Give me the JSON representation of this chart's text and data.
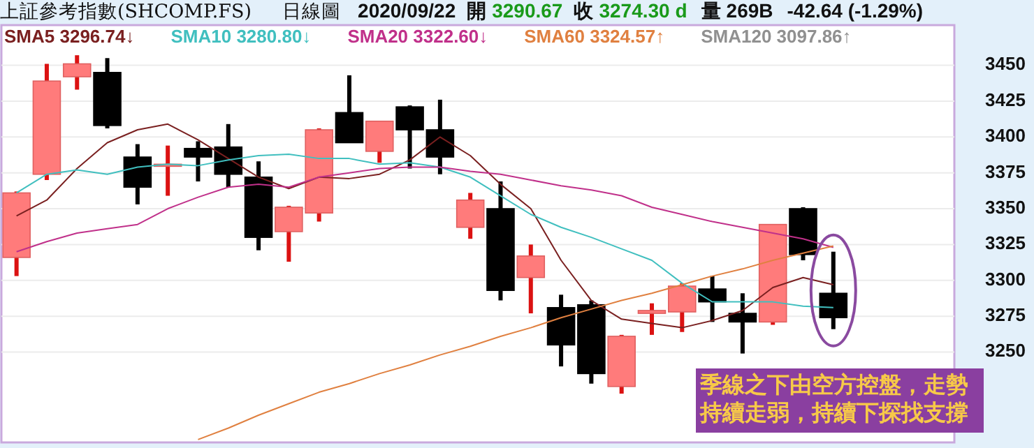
{
  "chart_data": {
    "type": "candlestick",
    "title": "上証參考指數(SHCOMP.FS)",
    "subtitle": "日線圖",
    "annotations": [
      "2020/09/22",
      "開",
      "3290.67",
      "收",
      "3274.30 d",
      "量",
      "269B",
      "-42.64 (-1.29%)",
      "季線之下由空方控盤，走勢持續走弱，持續下探找支撐"
    ],
    "categories": [
      null,
      null,
      null,
      null,
      null,
      null,
      null,
      null,
      null,
      null,
      null,
      null,
      null,
      null,
      null,
      null,
      null,
      null,
      null,
      null,
      null,
      null,
      null,
      null,
      null,
      null,
      null,
      null
    ],
    "ohlc": [
      [
        3316,
        3362,
        3303,
        3361
      ],
      [
        3374,
        3451,
        3370,
        3439
      ],
      [
        3442,
        3457,
        3433,
        3451
      ],
      [
        3445,
        3455,
        3406,
        3408
      ],
      [
        3386,
        3395,
        3353,
        3365
      ],
      [
        3380,
        3394,
        3359,
        3381
      ],
      [
        3392,
        3397,
        3369,
        3386
      ],
      [
        3393,
        3409,
        3365,
        3374
      ],
      [
        3372,
        3383,
        3321,
        3330
      ],
      [
        3334,
        3352,
        3313,
        3351
      ],
      [
        3347,
        3406,
        3341,
        3405
      ],
      [
        3417,
        3443,
        3396,
        3396
      ],
      [
        3390,
        3411,
        3382,
        3411
      ],
      [
        3421,
        3422,
        3378,
        3405
      ],
      [
        3405,
        3426,
        3374,
        3386
      ],
      [
        3337,
        3361,
        3329,
        3356
      ],
      [
        3350,
        3369,
        3286,
        3293
      ],
      [
        3302,
        3325,
        3277,
        3317
      ],
      [
        3281,
        3290,
        3240,
        3255
      ],
      [
        3283,
        3286,
        3228,
        3235
      ],
      [
        3226,
        3262,
        3221,
        3261
      ],
      [
        3277,
        3284,
        3262,
        3279
      ],
      [
        3278,
        3298,
        3264,
        3296
      ],
      [
        3294,
        3303,
        3271,
        3285
      ],
      [
        3277,
        3291,
        3249,
        3271
      ],
      [
        3271,
        3339,
        3269,
        3339
      ],
      [
        3350,
        3351,
        3314,
        3318
      ],
      [
        3291,
        3320,
        3266,
        3274
      ]
    ],
    "colors": [
      "#ff7b7b",
      "#ff7b7b",
      "#ff7b7b",
      "#000000",
      "#000000",
      "#ff7b7b",
      "#000000",
      "#000000",
      "#000000",
      "#ff7b7b",
      "#ff7b7b",
      "#000000",
      "#ff7b7b",
      "#000000",
      "#000000",
      "#ff7b7b",
      "#000000",
      "#ff7b7b",
      "#000000",
      "#000000",
      "#ff7b7b",
      "#ff7b7b",
      "#ff7b7b",
      "#000000",
      "#000000",
      "#ff7b7b",
      "#000000",
      "#000000"
    ],
    "series": [
      {
        "type": "line",
        "name": "SMA5 3296.74↓",
        "color": "#7a2020",
        "values": [
          3345,
          3356,
          3378,
          3396,
          3405,
          3409,
          3398,
          3385,
          3372,
          3364,
          3372,
          3371,
          3374,
          3384,
          3400,
          3387,
          3367,
          3350,
          3314,
          3286,
          3273,
          3270,
          3267,
          3272,
          3279,
          3295,
          3302,
          3297
        ]
      },
      {
        "type": "line",
        "name": "SMA10 3280.80↓",
        "color": "#40bfbf",
        "values": [
          3361,
          3374,
          3377,
          3374,
          3379,
          3381,
          3380,
          3384,
          3387,
          3388,
          3385,
          3385,
          3381,
          3382,
          3379,
          3372,
          3359,
          3346,
          3337,
          3330,
          3322,
          3314,
          3298,
          3285,
          3285,
          3285,
          3282,
          3281
        ]
      },
      {
        "type": "line",
        "name": "SMA20 3322.60↓",
        "color": "#c0308a",
        "values": [
          3320,
          3327,
          3333,
          3336,
          3339,
          3350,
          3358,
          3365,
          3367,
          3365,
          3372,
          3375,
          3378,
          3379,
          3379,
          3376,
          3374,
          3370,
          3366,
          3363,
          3359,
          3351,
          3346,
          3341,
          3337,
          3333,
          3329,
          3323
        ]
      },
      {
        "type": "line",
        "name": "SMA60 3324.57↑",
        "color": "#e08040",
        "values": [
          null,
          null,
          null,
          null,
          null,
          null,
          3189,
          3197,
          3206,
          3214,
          3222,
          3228,
          3235,
          3241,
          3248,
          3254,
          3261,
          3267,
          3274,
          3280,
          3286,
          3291,
          3297,
          3303,
          3308,
          3314,
          3319,
          3324
        ]
      },
      {
        "type": "line",
        "name": "SMA120 3097.86↑",
        "color": "#909090",
        "values": [
          null,
          null,
          null,
          null,
          null,
          null,
          null,
          null,
          null,
          null,
          null,
          null,
          null,
          null,
          null,
          null,
          null,
          null,
          null,
          null,
          null,
          null,
          null,
          null,
          null,
          null,
          null,
          null
        ]
      }
    ],
    "ylim": [
      3187,
      3478
    ],
    "yticks": [
      3250,
      3275,
      3300,
      3325,
      3350,
      3375,
      3400,
      3425,
      3450
    ],
    "grid": "y",
    "legend": "top left"
  }
}
